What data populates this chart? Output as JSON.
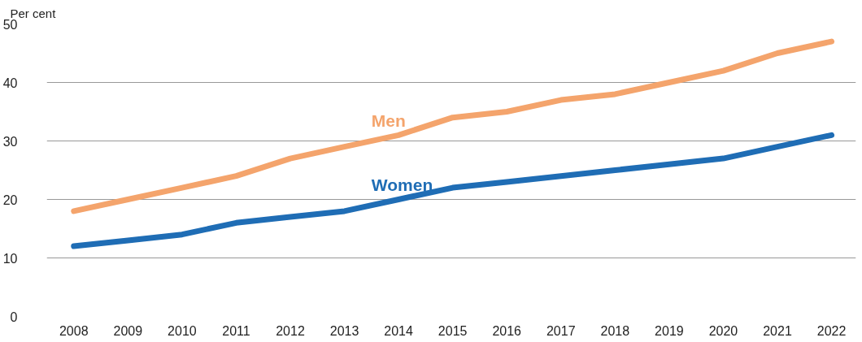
{
  "chart_data": {
    "type": "line",
    "ylabel": "Per cent",
    "categories": [
      "2008",
      "2009",
      "2010",
      "2011",
      "2012",
      "2013",
      "2014",
      "2015",
      "2016",
      "2017",
      "2018",
      "2019",
      "2020",
      "2021",
      "2022"
    ],
    "series": [
      {
        "name": "Men",
        "color": "#f4a46c",
        "values": [
          18,
          20,
          22,
          24,
          27,
          29,
          31,
          34,
          35,
          37,
          38,
          40,
          42,
          45,
          47
        ]
      },
      {
        "name": "Women",
        "color": "#1f6db5",
        "values": [
          12,
          13,
          14,
          16,
          17,
          18,
          20,
          22,
          23,
          24,
          25,
          26,
          27,
          29,
          31
        ]
      }
    ],
    "ylim": [
      0,
      50
    ],
    "yticks": [
      0,
      10,
      20,
      30,
      40,
      50
    ],
    "grid": "y",
    "legend": false,
    "marker": "none",
    "line_style": "solid"
  }
}
